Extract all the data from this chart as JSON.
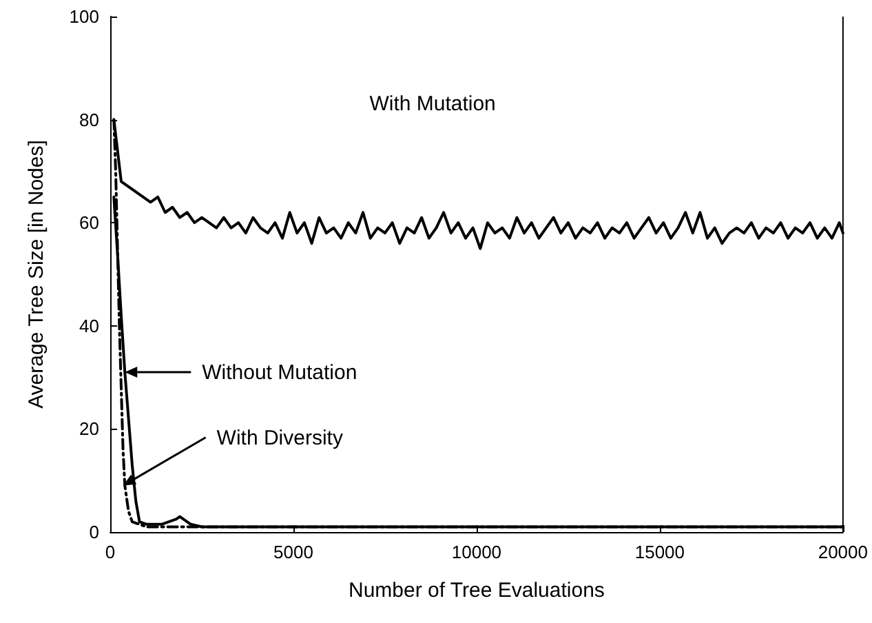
{
  "chart_data": {
    "type": "line",
    "xlabel": "Number of Tree Evaluations",
    "ylabel": "Average Tree Size [in Nodes]",
    "xlim": [
      0,
      20000
    ],
    "xticks": [
      0,
      5000,
      10000,
      15000,
      20000
    ],
    "ylim": [
      0,
      100
    ],
    "yticks": [
      0,
      20,
      40,
      60,
      80,
      100
    ],
    "grid": false,
    "marker": "none",
    "annotations": [
      "With Mutation",
      "Without Mutation",
      {
        "text": "With Diversity",
        "x": 350,
        "y": 9
      }
    ],
    "series": [
      {
        "color": "#000000",
        "line_style": "solid",
        "x": [
          100,
          300,
          500,
          700,
          900,
          1100,
          1300,
          1500,
          1700,
          1900,
          2100,
          2300,
          2500,
          2700,
          2900,
          3100,
          3300,
          3500,
          3700,
          3900,
          4100,
          4300,
          4500,
          4700,
          4900,
          5100,
          5300,
          5500,
          5700,
          5900,
          6100,
          6300,
          6500,
          6700,
          6900,
          7100,
          7300,
          7500,
          7700,
          7900,
          8100,
          8300,
          8500,
          8700,
          8900,
          9100,
          9300,
          9500,
          9700,
          9900,
          10100,
          10300,
          10500,
          10700,
          10900,
          11100,
          11300,
          11500,
          11700,
          11900,
          12100,
          12300,
          12500,
          12700,
          12900,
          13100,
          13300,
          13500,
          13700,
          13900,
          14100,
          14300,
          14500,
          14700,
          14900,
          15100,
          15300,
          15500,
          15700,
          15900,
          16100,
          16300,
          16500,
          16700,
          16900,
          17100,
          17300,
          17500,
          17700,
          17900,
          18100,
          18300,
          18500,
          18700,
          18900,
          19100,
          19300,
          19500,
          19700,
          19900,
          20000
        ],
        "values": [
          80,
          68,
          67,
          66,
          65,
          64,
          65,
          62,
          63,
          61,
          62,
          60,
          61,
          60,
          59,
          61,
          59,
          60,
          58,
          61,
          59,
          58,
          60,
          57,
          62,
          58,
          60,
          56,
          61,
          58,
          59,
          57,
          60,
          58,
          62,
          57,
          59,
          58,
          60,
          56,
          59,
          58,
          61,
          57,
          59,
          62,
          58,
          60,
          57,
          59,
          55,
          60,
          58,
          59,
          57,
          61,
          58,
          60,
          57,
          59,
          61,
          58,
          60,
          57,
          59,
          58,
          60,
          57,
          59,
          58,
          60,
          57,
          59,
          61,
          58,
          60,
          57,
          59,
          62,
          58,
          62,
          57,
          59,
          56,
          58,
          59,
          58,
          60,
          57,
          59,
          58,
          60,
          57,
          59,
          58,
          60,
          57,
          59,
          57,
          60,
          58
        ]
      },
      {
        "color": "#000000",
        "line_style": "solid",
        "x": [
          100,
          200,
          300,
          400,
          500,
          600,
          700,
          800,
          1000,
          1200,
          1400,
          1600,
          1800,
          1900,
          2000,
          2200,
          2500,
          3000,
          5000,
          10000,
          15000,
          20000
        ],
        "values": [
          65,
          54,
          42,
          31,
          22,
          13,
          6,
          2,
          1.5,
          1.5,
          1.5,
          2,
          2.5,
          3,
          2.5,
          1.5,
          1,
          1,
          1,
          1,
          1,
          1
        ]
      },
      {
        "color": "#000000",
        "line_style": "dashed",
        "x": [
          100,
          150,
          200,
          250,
          300,
          350,
          400,
          500,
          600,
          800,
          1000,
          2000,
          5000,
          10000,
          15000,
          20000
        ],
        "values": [
          80,
          70,
          55,
          40,
          28,
          16,
          9,
          4,
          2,
          1.5,
          1,
          1,
          1,
          1,
          1,
          1
        ]
      }
    ]
  }
}
